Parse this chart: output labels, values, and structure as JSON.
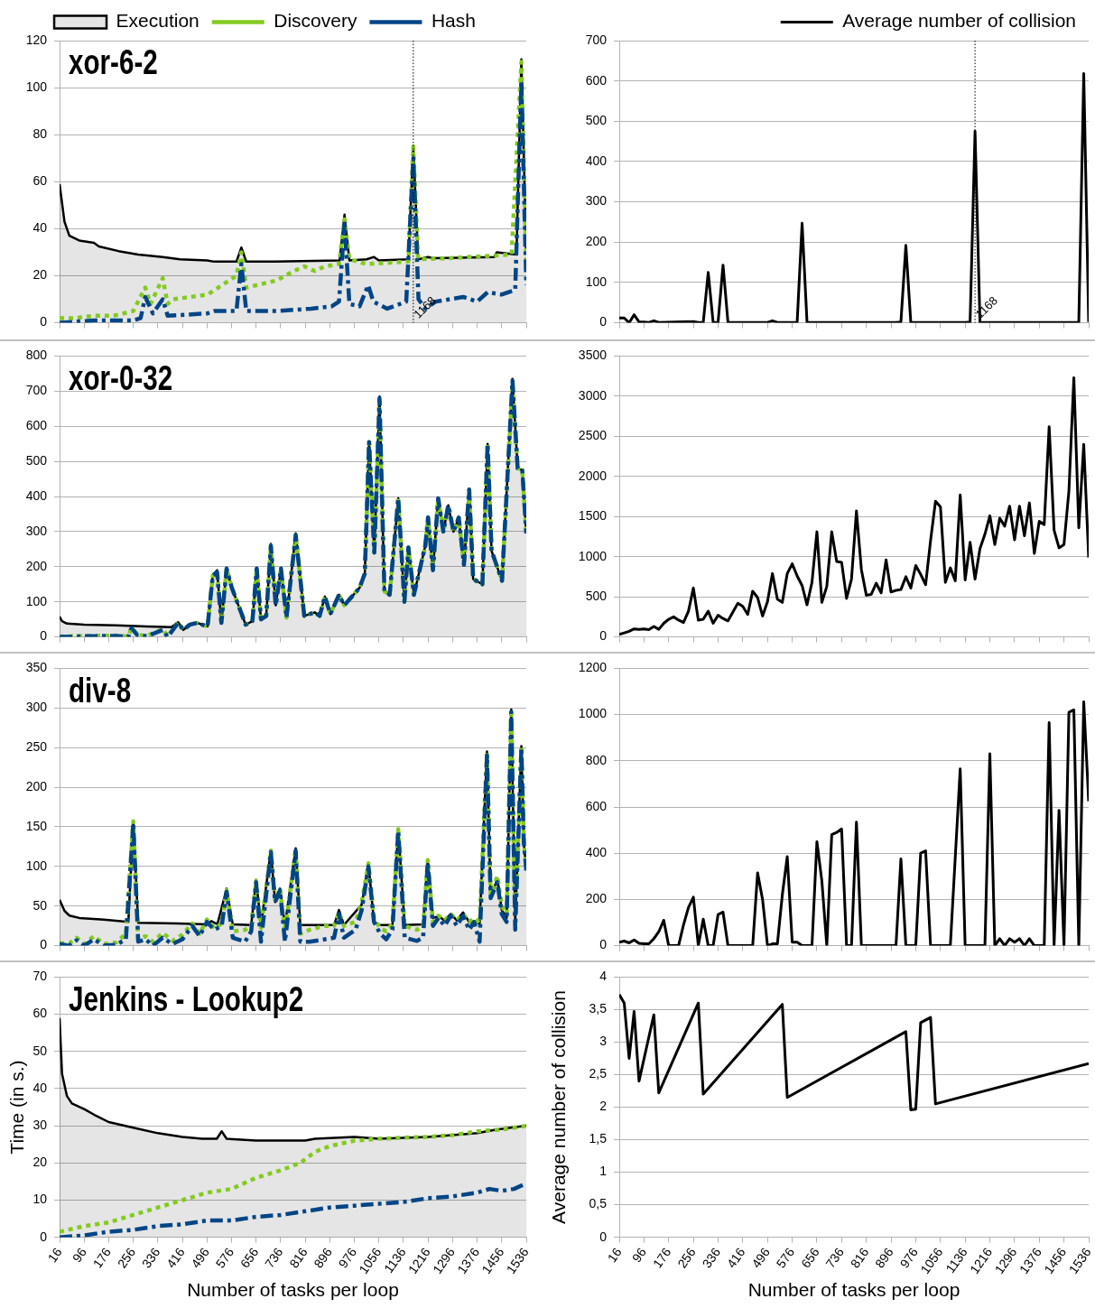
{
  "chart_data": [
    {
      "type": "line",
      "title": "xor-6-2",
      "xlim": [
        16,
        1536
      ],
      "xticks": [
        16,
        96,
        176,
        256,
        336,
        416,
        496,
        576,
        656,
        736,
        816,
        896,
        976,
        1056,
        1136,
        1216,
        1296,
        1376,
        1456,
        1536
      ],
      "ylim": [
        0,
        120
      ],
      "yticks": [
        0,
        20,
        40,
        60,
        80,
        100,
        120
      ],
      "grid": "y",
      "legend": "top",
      "tick_labels": "y",
      "marker": "none",
      "ref_lines": [
        {
          "axis": "x",
          "value": 1168,
          "label": "1168",
          "line_style": "dotted",
          "color": "#000000"
        }
      ],
      "series": [
        {
          "name": "Execution",
          "type": "area",
          "color": "#000000",
          "line_style": "solid",
          "x": [
            16,
            32,
            48,
            80,
            128,
            144,
            208,
            272,
            352,
            408,
            496,
            520,
            592,
            608,
            624,
            720,
            928,
            944,
            960,
            1016,
            1040,
            1056,
            1152,
            1168,
            1184,
            1216,
            1232,
            1432,
            1440,
            1504,
            1520,
            1536
          ],
          "values": [
            59,
            43,
            37,
            35,
            34,
            32.5,
            30.5,
            29,
            28,
            27,
            26.5,
            26,
            26,
            32,
            26,
            26,
            26.5,
            46,
            26.5,
            27,
            28,
            26.5,
            27,
            75,
            27,
            28,
            27.5,
            28,
            30,
            29,
            112,
            30
          ]
        },
        {
          "name": "Discovery",
          "type": "line",
          "color": "#83ca1f",
          "line_style": "dotted",
          "x": [
            16,
            64,
            128,
            192,
            256,
            295,
            312,
            352,
            368,
            385,
            498,
            592,
            608,
            624,
            723,
            779,
            813,
            847,
            880,
            926,
            944,
            960,
            1016,
            1152,
            1168,
            1184,
            1286,
            1488,
            1520,
            1536
          ],
          "values": [
            2,
            2,
            3,
            3,
            5,
            15,
            8,
            19,
            8,
            10,
            12,
            20,
            30,
            15,
            18,
            22,
            24,
            22,
            24,
            25,
            44,
            27,
            25,
            26,
            75,
            27,
            27.5,
            29,
            111,
            25
          ]
        },
        {
          "name": "Hash",
          "type": "line",
          "color": "#004586",
          "line_style": "dashed",
          "x": [
            16,
            128,
            256,
            280,
            295,
            320,
            352,
            368,
            498,
            520,
            592,
            608,
            624,
            723,
            835,
            902,
            926,
            944,
            960,
            993,
            1021,
            1038,
            1083,
            1145,
            1168,
            1185,
            1207,
            1241,
            1331,
            1376,
            1410,
            1455,
            1500,
            1520,
            1536
          ],
          "values": [
            0,
            1,
            1,
            2,
            11,
            4,
            10,
            3,
            4,
            5,
            5,
            25,
            5,
            5,
            6,
            7,
            9,
            42,
            8,
            7,
            16,
            9,
            6,
            9,
            70,
            10,
            6,
            9,
            11,
            9,
            13,
            12,
            14,
            103,
            16
          ]
        }
      ]
    },
    {
      "type": "line",
      "xlim": [
        16,
        1536
      ],
      "xticks": [
        16,
        96,
        176,
        256,
        336,
        416,
        496,
        576,
        656,
        736,
        816,
        896,
        976,
        1056,
        1136,
        1216,
        1296,
        1376,
        1456,
        1536
      ],
      "ylim": [
        0,
        700
      ],
      "yticks": [
        0,
        100,
        200,
        300,
        400,
        500,
        600,
        700
      ],
      "grid": "y",
      "legend": "top right",
      "tick_labels": "y",
      "marker": "none",
      "ref_lines": [
        {
          "axis": "x",
          "value": 1168,
          "label": "1168",
          "line_style": "dotted",
          "color": "#000000"
        }
      ],
      "series": [
        {
          "name": "Average number of collision",
          "color": "#000000",
          "line_style": "solid",
          "x": [
            16,
            32,
            48,
            64,
            80,
            96,
            112,
            128,
            144,
            256,
            272,
            288,
            304,
            320,
            336,
            352,
            368,
            496,
            512,
            528,
            592,
            608,
            624,
            912,
            928,
            944,
            960,
            1136,
            1152,
            1168,
            1184,
            1504,
            1520,
            1536
          ],
          "values": [
            12,
            12,
            0,
            20,
            2,
            2,
            1,
            5,
            1,
            3,
            1,
            1,
            125,
            1,
            1,
            143,
            1,
            1,
            5,
            1,
            1,
            247,
            1,
            1,
            2,
            192,
            1,
            1,
            2,
            475,
            1,
            1,
            618,
            2
          ]
        }
      ]
    },
    {
      "type": "line",
      "title": "xor-0-32",
      "xlim": [
        16,
        1536
      ],
      "xticks": [
        16,
        96,
        176,
        256,
        336,
        416,
        496,
        576,
        656,
        736,
        816,
        896,
        976,
        1056,
        1136,
        1216,
        1296,
        1376,
        1456,
        1536
      ],
      "ylim": [
        0,
        800
      ],
      "yticks": [
        0,
        100,
        200,
        300,
        400,
        500,
        600,
        700,
        800
      ],
      "grid": "y",
      "tick_labels": "y",
      "marker": "none",
      "series": [
        {
          "type": "area",
          "color": "#000000",
          "line_style": "solid",
          "x": [
            16,
            24,
            40,
            96,
            200,
            300,
            380,
            402,
            419,
            440,
            464,
            498,
            515,
            529,
            543,
            560,
            577,
            622,
            644,
            658,
            672,
            689,
            704,
            720,
            737,
            755,
            785,
            813,
            847,
            863,
            880,
            898,
            926,
            943,
            993,
            1010,
            1024,
            1041,
            1058,
            1074,
            1091,
            1119,
            1139,
            1152,
            1170,
            1207,
            1216,
            1232,
            1249,
            1266,
            1282,
            1299,
            1316,
            1333,
            1350,
            1363,
            1393,
            1410,
            1423,
            1457,
            1491,
            1508,
            1523,
            1536
          ],
          "values": [
            58,
            45,
            38,
            35,
            33,
            30,
            28,
            42,
            20,
            35,
            40,
            30,
            175,
            190,
            40,
            195,
            140,
            35,
            45,
            195,
            50,
            60,
            265,
            90,
            195,
            55,
            295,
            60,
            70,
            60,
            115,
            65,
            120,
            90,
            140,
            180,
            555,
            240,
            685,
            130,
            120,
            395,
            100,
            255,
            120,
            260,
            340,
            190,
            395,
            300,
            375,
            300,
            340,
            205,
            420,
            165,
            150,
            550,
            245,
            160,
            735,
            480,
            475,
            295
          ]
        },
        {
          "type": "line",
          "color": "#83ca1f",
          "line_style": "dotted",
          "x": [
            16,
            96,
            200,
            240,
            250,
            270,
            300,
            352,
            368,
            402,
            419,
            440,
            464,
            498,
            515,
            529,
            543,
            560,
            577,
            622,
            644,
            658,
            672,
            689,
            704,
            720,
            737,
            755,
            785,
            813,
            847,
            863,
            880,
            898,
            926,
            943,
            993,
            1010,
            1024,
            1041,
            1058,
            1074,
            1091,
            1119,
            1139,
            1152,
            1170,
            1207,
            1216,
            1232,
            1249,
            1266,
            1282,
            1299,
            1316,
            1333,
            1350,
            1363,
            1393,
            1410,
            1423,
            1457,
            1491,
            1508,
            1523,
            1536
          ],
          "values": [
            1,
            3,
            4,
            1,
            27,
            6,
            3,
            22,
            2,
            42,
            20,
            35,
            40,
            30,
            175,
            185,
            40,
            195,
            140,
            35,
            45,
            195,
            50,
            60,
            260,
            90,
            195,
            55,
            290,
            60,
            70,
            60,
            115,
            65,
            120,
            90,
            140,
            180,
            555,
            240,
            670,
            130,
            120,
            395,
            100,
            255,
            120,
            260,
            340,
            190,
            395,
            300,
            375,
            300,
            340,
            205,
            420,
            165,
            150,
            550,
            245,
            160,
            720,
            480,
            475,
            295
          ]
        },
        {
          "type": "line",
          "color": "#004586",
          "line_style": "dashed",
          "x": [
            16,
            96,
            200,
            240,
            250,
            270,
            300,
            352,
            368,
            402,
            419,
            440,
            464,
            498,
            515,
            529,
            543,
            560,
            577,
            622,
            644,
            658,
            672,
            689,
            704,
            720,
            737,
            755,
            785,
            813,
            847,
            863,
            880,
            898,
            926,
            943,
            993,
            1010,
            1024,
            1041,
            1058,
            1074,
            1091,
            1119,
            1139,
            1152,
            1170,
            1207,
            1216,
            1232,
            1249,
            1266,
            1282,
            1299,
            1316,
            1333,
            1350,
            1363,
            1393,
            1410,
            1423,
            1457,
            1491,
            1508,
            1523,
            1536
          ],
          "values": [
            0,
            2,
            3,
            0,
            25,
            5,
            2,
            20,
            0,
            40,
            20,
            35,
            40,
            30,
            175,
            185,
            40,
            195,
            140,
            35,
            45,
            195,
            50,
            60,
            260,
            90,
            195,
            55,
            290,
            60,
            70,
            60,
            115,
            65,
            120,
            90,
            140,
            180,
            555,
            240,
            680,
            130,
            120,
            395,
            100,
            255,
            120,
            260,
            340,
            190,
            395,
            300,
            375,
            300,
            340,
            205,
            420,
            165,
            150,
            550,
            245,
            160,
            730,
            480,
            475,
            295
          ]
        }
      ]
    },
    {
      "type": "line",
      "xlim": [
        16,
        1536
      ],
      "xticks": [
        16,
        96,
        176,
        256,
        336,
        416,
        496,
        576,
        656,
        736,
        816,
        896,
        976,
        1056,
        1136,
        1216,
        1296,
        1376,
        1456,
        1536
      ],
      "ylim": [
        0,
        3500
      ],
      "yticks": [
        0,
        500,
        1000,
        1500,
        2000,
        2500,
        3000,
        3500
      ],
      "grid": "y",
      "tick_labels": "y",
      "marker": "none",
      "series": [
        {
          "color": "#000000",
          "line_style": "solid",
          "x": [
            16,
            32,
            48,
            64,
            80,
            96,
            112,
            128,
            144,
            160,
            176,
            192,
            208,
            224,
            240,
            256,
            272,
            288,
            304,
            320,
            336,
            352,
            368,
            384,
            400,
            416,
            432,
            448,
            464,
            480,
            496,
            512,
            528,
            544,
            560,
            576,
            592,
            608,
            624,
            640,
            656,
            672,
            688,
            704,
            720,
            736,
            752,
            768,
            784,
            800,
            816,
            832,
            848,
            864,
            880,
            896,
            912,
            928,
            944,
            960,
            976,
            992,
            1008,
            1024,
            1040,
            1056,
            1072,
            1088,
            1104,
            1120,
            1136,
            1152,
            1168,
            1184,
            1200,
            1216,
            1232,
            1248,
            1264,
            1280,
            1296,
            1312,
            1328,
            1344,
            1360,
            1376,
            1392,
            1408,
            1424,
            1440,
            1456,
            1472,
            1488,
            1504,
            1520,
            1536
          ],
          "values": [
            30,
            50,
            70,
            100,
            95,
            100,
            90,
            130,
            95,
            170,
            220,
            250,
            210,
            180,
            320,
            610,
            210,
            220,
            320,
            170,
            270,
            230,
            200,
            310,
            420,
            380,
            280,
            570,
            490,
            260,
            440,
            790,
            470,
            430,
            790,
            910,
            760,
            640,
            400,
            680,
            1310,
            430,
            630,
            1310,
            940,
            930,
            480,
            720,
            1570,
            840,
            520,
            530,
            670,
            550,
            960,
            560,
            580,
            590,
            750,
            610,
            890,
            780,
            650,
            1200,
            1690,
            1620,
            680,
            860,
            700,
            1770,
            710,
            1180,
            720,
            1100,
            1280,
            1510,
            1150,
            1480,
            1380,
            1630,
            1210,
            1630,
            1260,
            1670,
            1040,
            1440,
            1400,
            2620,
            1330,
            1110,
            1150,
            1820,
            3230,
            1360,
            2400,
            990
          ]
        }
      ]
    },
    {
      "type": "line",
      "title": "div-8",
      "xlim": [
        16,
        1536
      ],
      "xticks": [
        16,
        96,
        176,
        256,
        336,
        416,
        496,
        576,
        656,
        736,
        816,
        896,
        976,
        1056,
        1136,
        1216,
        1296,
        1376,
        1456,
        1536
      ],
      "ylim": [
        0,
        350
      ],
      "yticks": [
        0,
        50,
        100,
        150,
        200,
        250,
        300,
        350
      ],
      "grid": "y",
      "tick_labels": "y",
      "marker": "none",
      "series": [
        {
          "type": "area",
          "color": "#000000",
          "line_style": "solid",
          "x": [
            16,
            32,
            48,
            80,
            160,
            240,
            256,
            272,
            400,
            496,
            510,
            530,
            560,
            580,
            640,
            656,
            672,
            704,
            718,
            734,
            750,
            785,
            800,
            910,
            926,
            942,
            1000,
            1022,
            1040,
            1060,
            1100,
            1119,
            1140,
            1200,
            1215,
            1232,
            1250,
            1270,
            1290,
            1310,
            1330,
            1350,
            1384,
            1408,
            1420,
            1442,
            1456,
            1472,
            1487,
            1500,
            1520,
            1528,
            1536
          ],
          "values": [
            58,
            44,
            38,
            35,
            33,
            30,
            157,
            29,
            28,
            27,
            31,
            27,
            72,
            27,
            26,
            83,
            26,
            120,
            55,
            72,
            26,
            123,
            26,
            26,
            45,
            26,
            52,
            104,
            30,
            26,
            26,
            147,
            26,
            27,
            108,
            35,
            37,
            32,
            40,
            32,
            42,
            30,
            28,
            245,
            60,
            85,
            45,
            35,
            298,
            30,
            252,
            130,
            95
          ]
        },
        {
          "type": "line",
          "color": "#83ca1f",
          "line_style": "dotted",
          "x": [
            16,
            48,
            72,
            96,
            128,
            160,
            200,
            232,
            256,
            272,
            296,
            320,
            352,
            384,
            416,
            448,
            472,
            496,
            520,
            544,
            560,
            580,
            620,
            640,
            656,
            672,
            704,
            718,
            734,
            750,
            785,
            800,
            830,
            880,
            910,
            926,
            942,
            980,
            1000,
            1022,
            1040,
            1060,
            1080,
            1100,
            1119,
            1140,
            1180,
            1200,
            1215,
            1232,
            1250,
            1270,
            1290,
            1310,
            1330,
            1350,
            1366,
            1384,
            1408,
            1420,
            1442,
            1456,
            1472,
            1487,
            1500,
            1520,
            1528,
            1536
          ],
          "values": [
            3,
            3,
            10,
            2,
            12,
            2,
            4,
            15,
            157,
            8,
            12,
            5,
            16,
            6,
            14,
            28,
            15,
            33,
            22,
            28,
            70,
            18,
            20,
            25,
            82,
            22,
            120,
            58,
            72,
            18,
            122,
            15,
            20,
            25,
            25,
            42,
            25,
            30,
            55,
            104,
            35,
            22,
            18,
            28,
            147,
            25,
            20,
            25,
            108,
            30,
            38,
            32,
            40,
            32,
            40,
            30,
            35,
            28,
            245,
            65,
            88,
            50,
            40,
            298,
            30,
            252,
            135,
            100
          ]
        },
        {
          "type": "line",
          "color": "#004586",
          "line_style": "dashed",
          "x": [
            16,
            48,
            72,
            96,
            128,
            160,
            200,
            232,
            256,
            272,
            296,
            320,
            352,
            384,
            416,
            448,
            472,
            496,
            520,
            544,
            560,
            580,
            620,
            640,
            656,
            672,
            704,
            718,
            734,
            750,
            785,
            800,
            830,
            880,
            910,
            926,
            942,
            980,
            1000,
            1022,
            1040,
            1060,
            1080,
            1100,
            1119,
            1140,
            1180,
            1200,
            1215,
            1232,
            1250,
            1270,
            1290,
            1310,
            1330,
            1350,
            1366,
            1384,
            1408,
            1420,
            1442,
            1456,
            1472,
            1487,
            1500,
            1520,
            1528,
            1536
          ],
          "values": [
            2,
            0,
            7,
            0,
            8,
            0,
            1,
            8,
            155,
            5,
            8,
            0,
            10,
            2,
            8,
            25,
            12,
            30,
            20,
            25,
            68,
            10,
            5,
            18,
            80,
            5,
            118,
            55,
            70,
            5,
            120,
            5,
            5,
            8,
            10,
            40,
            10,
            20,
            45,
            100,
            30,
            15,
            8,
            20,
            145,
            10,
            6,
            10,
            105,
            25,
            35,
            25,
            38,
            25,
            38,
            20,
            30,
            5,
            240,
            60,
            80,
            40,
            30,
            295,
            20,
            250,
            130,
            95
          ]
        }
      ]
    },
    {
      "type": "line",
      "xlim": [
        16,
        1536
      ],
      "xticks": [
        16,
        96,
        176,
        256,
        336,
        416,
        496,
        576,
        656,
        736,
        816,
        896,
        976,
        1056,
        1136,
        1216,
        1296,
        1376,
        1456,
        1536
      ],
      "ylim": [
        0,
        1200
      ],
      "yticks": [
        0,
        200,
        400,
        600,
        800,
        1000,
        1200
      ],
      "grid": "y",
      "tick_labels": "y",
      "marker": "none",
      "series": [
        {
          "color": "#000000",
          "line_style": "solid",
          "x": [
            16,
            32,
            48,
            64,
            80,
            96,
            112,
            128,
            144,
            160,
            176,
            208,
            224,
            240,
            256,
            272,
            288,
            304,
            320,
            336,
            352,
            368,
            448,
            464,
            480,
            496,
            512,
            528,
            544,
            560,
            576,
            592,
            608,
            640,
            656,
            672,
            688,
            704,
            720,
            736,
            752,
            768,
            784,
            800,
            912,
            928,
            944,
            976,
            992,
            1008,
            1024,
            1088,
            1120,
            1136,
            1200,
            1216,
            1232,
            1248,
            1264,
            1280,
            1296,
            1312,
            1328,
            1344,
            1360,
            1392,
            1408,
            1424,
            1440,
            1456,
            1472,
            1488,
            1504,
            1520,
            1536
          ],
          "values": [
            15,
            20,
            12,
            25,
            10,
            8,
            8,
            30,
            60,
            110,
            0,
            0,
            90,
            165,
            210,
            0,
            115,
            0,
            0,
            135,
            145,
            0,
            0,
            315,
            200,
            0,
            8,
            8,
            220,
            385,
            15,
            15,
            0,
            0,
            450,
            280,
            0,
            480,
            490,
            505,
            0,
            0,
            535,
            0,
            0,
            375,
            0,
            0,
            400,
            410,
            0,
            0,
            765,
            0,
            0,
            830,
            0,
            30,
            0,
            30,
            15,
            30,
            0,
            30,
            0,
            0,
            965,
            0,
            585,
            0,
            1010,
            1020,
            0,
            1055,
            625
          ]
        }
      ]
    },
    {
      "type": "line",
      "title": "Jenkins - Lookup2",
      "xlabel": "Number of tasks per loop",
      "ylabel": "Time (in s.)",
      "xlim": [
        16,
        1536
      ],
      "xticks": [
        16,
        96,
        176,
        256,
        336,
        416,
        496,
        576,
        656,
        736,
        816,
        896,
        976,
        1056,
        1136,
        1216,
        1296,
        1376,
        1456,
        1536
      ],
      "ylim": [
        0,
        70
      ],
      "yticks": [
        0,
        10,
        20,
        30,
        40,
        50,
        60,
        70
      ],
      "grid": "y",
      "marker": "none",
      "series": [
        {
          "type": "area",
          "color": "#000000",
          "line_style": "solid",
          "x": [
            16,
            24,
            40,
            56,
            96,
            128,
            176,
            256,
            336,
            416,
            480,
            528,
            544,
            560,
            656,
            816,
            848,
            976,
            1056,
            1216,
            1376,
            1440,
            1536
          ],
          "values": [
            59,
            44,
            38,
            36,
            34.5,
            33,
            31,
            29.5,
            28,
            27,
            26.5,
            26.5,
            28.5,
            26.5,
            26,
            26,
            26.5,
            27,
            26.5,
            27,
            28,
            29,
            30
          ]
        },
        {
          "type": "line",
          "color": "#83ca1f",
          "line_style": "dotted",
          "x": [
            16,
            96,
            176,
            256,
            336,
            416,
            496,
            576,
            656,
            736,
            800,
            848,
            896,
            976,
            1056,
            1136,
            1216,
            1296,
            1376,
            1456,
            1536
          ],
          "values": [
            1.5,
            3,
            4,
            6,
            8,
            10,
            12,
            13,
            16,
            18,
            20,
            23,
            24.5,
            26,
            26.5,
            26.8,
            27,
            27.5,
            28.5,
            29,
            30
          ]
        },
        {
          "type": "line",
          "color": "#004586",
          "line_style": "dashed",
          "x": [
            16,
            96,
            176,
            256,
            336,
            416,
            496,
            576,
            656,
            736,
            816,
            896,
            976,
            1056,
            1136,
            1216,
            1296,
            1376,
            1416,
            1456,
            1496,
            1536
          ],
          "values": [
            0,
            0.5,
            1.5,
            2,
            3,
            3.5,
            4.5,
            4.5,
            5.5,
            6,
            7,
            8,
            8.5,
            9,
            9.5,
            10.5,
            11,
            12,
            13,
            12.5,
            13,
            14.5
          ]
        }
      ]
    },
    {
      "type": "line",
      "xlabel": "Number of tasks per loop",
      "ylabel": "Average number of collision",
      "xlim": [
        16,
        1536
      ],
      "xticks": [
        16,
        96,
        176,
        256,
        336,
        416,
        496,
        576,
        656,
        736,
        816,
        896,
        976,
        1056,
        1136,
        1216,
        1296,
        1376,
        1456,
        1536
      ],
      "ylim": [
        0,
        4
      ],
      "yticks": [
        0,
        {
          "value": 0.5,
          "label": "0,5"
        },
        1,
        {
          "value": 1.5,
          "label": "1,5"
        },
        2,
        {
          "value": 2.5,
          "label": "2,5"
        },
        3,
        {
          "value": 3.5,
          "label": "3,5"
        },
        4
      ],
      "grid": "y",
      "marker": "none",
      "series": [
        {
          "color": "#000000",
          "line_style": "solid",
          "x": [
            16,
            32,
            48,
            64,
            80,
            128,
            144,
            272,
            288,
            544,
            560,
            944,
            960,
            976,
            992,
            1024,
            1040,
            1536
          ],
          "values": [
            3.73,
            3.6,
            2.75,
            3.47,
            2.4,
            3.42,
            2.22,
            3.6,
            2.2,
            3.58,
            2.15,
            3.16,
            1.96,
            1.97,
            3.3,
            3.38,
            2.05,
            2.67
          ]
        }
      ]
    }
  ]
}
